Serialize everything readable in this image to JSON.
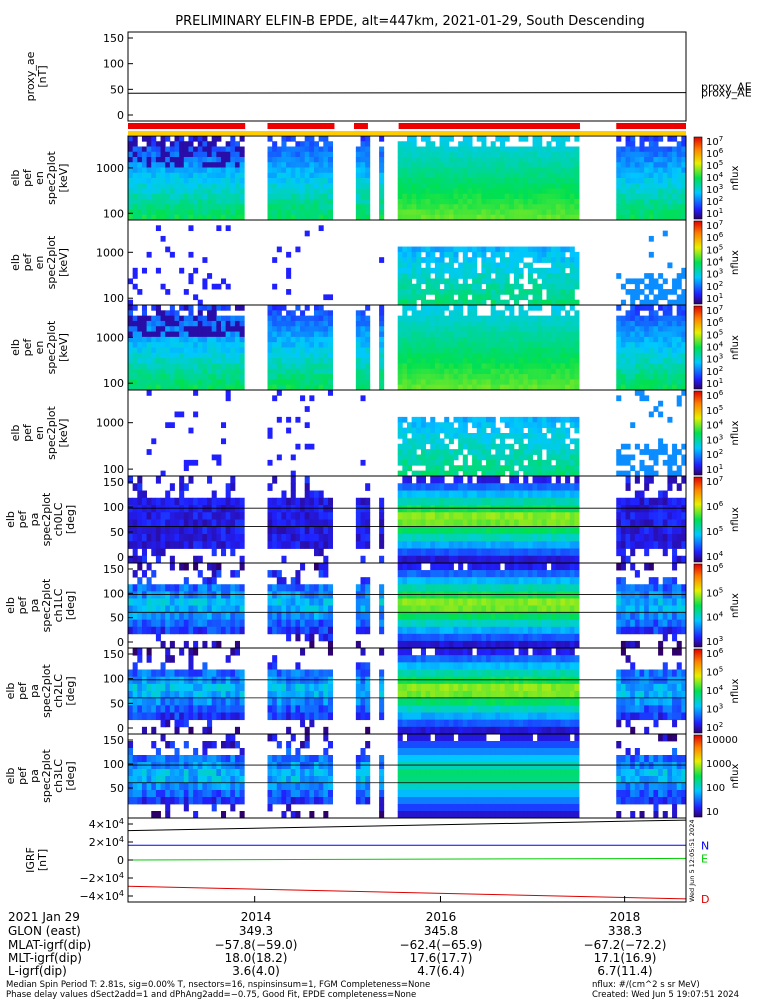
{
  "chart_data": {
    "type": "heatmap",
    "title": "PRELIMINARY ELFIN-B EPDE, alt=447km, 2021-01-29, South Descending",
    "time_ticks": [
      "2014",
      "2016",
      "2018"
    ],
    "panels": [
      {
        "id": "proxy_ae",
        "type": "line",
        "ylabel": [
          "proxy_ae",
          "[nT]"
        ],
        "y_ticks": [
          "150",
          "100",
          "50",
          "0"
        ],
        "legend": "proxy_AE",
        "ylim": [
          -5,
          155
        ],
        "series": [
          {
            "name": "proxy_AE",
            "color": "#000000",
            "y": [
              45,
              46
            ]
          }
        ]
      },
      {
        "id": "elb_pef_en_spec2plot_omni",
        "type": "heatmap",
        "ylabel": [
          "elb",
          "pef",
          "en",
          "spec2plot",
          "[keV]"
        ],
        "y_ticks": [
          "1000",
          "100"
        ],
        "cbar_ticks": [
          "10^7",
          "10^6",
          "10^5",
          "10^4",
          "10^3",
          "10^2",
          "10^1"
        ],
        "cbar_label": "nflux"
      },
      {
        "id": "elb_pef_en_spec2plot_anti",
        "type": "heatmap",
        "ylabel": [
          "elb",
          "pef",
          "en",
          "spec2plot",
          "[keV]"
        ],
        "y_ticks": [
          "1000",
          "100"
        ],
        "cbar_ticks": [
          "10^7",
          "10^6",
          "10^5",
          "10^4",
          "10^3",
          "10^2",
          "10^1"
        ],
        "cbar_label": "nflux"
      },
      {
        "id": "elb_pef_en_spec2plot_perp",
        "type": "heatmap",
        "ylabel": [
          "elb",
          "pef",
          "en",
          "spec2plot",
          "[keV]"
        ],
        "y_ticks": [
          "1000",
          "100"
        ],
        "cbar_ticks": [
          "10^7",
          "10^6",
          "10^5",
          "10^4",
          "10^3",
          "10^2",
          "10^1"
        ],
        "cbar_label": "nflux"
      },
      {
        "id": "elb_pef_en_spec2plot_para",
        "type": "heatmap",
        "ylabel": [
          "elb",
          "pef",
          "en",
          "spec2plot",
          "[keV]"
        ],
        "y_ticks": [
          "1000",
          "100"
        ],
        "cbar_ticks": [
          "10^6",
          "10^5",
          "10^4",
          "10^3",
          "10^2",
          "10^1"
        ],
        "cbar_label": "nflux"
      },
      {
        "id": "elb_pef_pa_ch0LC",
        "type": "heatmap",
        "ylabel": [
          "elb",
          "pef",
          "pa",
          "spec2plot",
          "ch0LC",
          "[deg]"
        ],
        "y_ticks": [
          "150",
          "100",
          "50",
          "0"
        ],
        "cbar_ticks": [
          "10^7",
          "10^6",
          "10^5",
          "10^4"
        ],
        "cbar_label": "nflux"
      },
      {
        "id": "elb_pef_pa_ch1LC",
        "type": "heatmap",
        "ylabel": [
          "elb",
          "pef",
          "pa",
          "spec2plot",
          "ch1LC",
          "[deg]"
        ],
        "y_ticks": [
          "150",
          "100",
          "50",
          "0"
        ],
        "cbar_ticks": [
          "10^6",
          "10^5",
          "10^4",
          "10^3"
        ],
        "cbar_label": "nflux"
      },
      {
        "id": "elb_pef_pa_ch2LC",
        "type": "heatmap",
        "ylabel": [
          "elb",
          "pef",
          "pa",
          "spec2plot",
          "ch2LC",
          "[deg]"
        ],
        "y_ticks": [
          "150",
          "100",
          "50",
          "0"
        ],
        "cbar_ticks": [
          "10^6",
          "10^5",
          "10^4",
          "10^3",
          "10^2"
        ],
        "cbar_label": "nflux"
      },
      {
        "id": "elb_pef_pa_ch3LC",
        "type": "heatmap",
        "ylabel": [
          "elb",
          "pef",
          "pa",
          "spec2plot",
          "ch3LC",
          "[deg]"
        ],
        "y_ticks": [
          "150",
          "100",
          "50"
        ],
        "cbar_ticks": [
          "10000",
          "1000",
          "100",
          "10"
        ],
        "cbar_label": "nflux"
      },
      {
        "id": "igrf",
        "type": "line",
        "ylabel": [
          "IGRF",
          "[nT]"
        ],
        "y_ticks": [
          "4×10^4",
          "2×10^4",
          "0",
          "−2×10^4",
          "−4×10^4"
        ],
        "ylim": [
          -40000,
          40000
        ],
        "series": [
          {
            "name": "",
            "color": "#000000",
            "y": [
              28000,
              38000
            ]
          },
          {
            "name": "N",
            "color": "#0000ff",
            "y": [
              14000,
              14000
            ]
          },
          {
            "name": "E",
            "color": "#00cc00",
            "y": [
              0,
              1500
            ]
          },
          {
            "name": "D",
            "color": "#dd0000",
            "y": [
              -25000,
              -37000
            ]
          }
        ]
      }
    ],
    "footer_rows": [
      {
        "label": "2021 Jan 29",
        "values": [
          "2014",
          "2016",
          "2018"
        ]
      },
      {
        "label": "GLON (east)",
        "values": [
          "349.3",
          "345.8",
          "338.3"
        ]
      },
      {
        "label": "MLAT-igrf(dip)",
        "values": [
          "−57.8(−59.0)",
          "−62.4(−65.9)",
          "−67.2(−72.2)"
        ]
      },
      {
        "label": "MLT-igrf(dip)",
        "values": [
          "18.0(18.2)",
          "17.6(17.7)",
          "17.1(16.9)"
        ]
      },
      {
        "label": "L-igrf(dip)",
        "values": [
          "3.6(4.0)",
          "4.7(6.4)",
          "6.7(11.4)"
        ]
      }
    ],
    "footer_notes": [
      "Median Spin Period T: 2.81s, sig=0.00% T, nsectors=16, nspinsinsum=1, FGM Completeness=None",
      "Phase delay values dSect2add=1 and dPhAng2add=−0.75, Good Fit, EPDE completeness=None"
    ],
    "units_note": "nflux: #/(cm^2 s sr MeV)",
    "created": "Created: Wed Jun  5 19:07:51 2024",
    "side_stamp": "Wed Jun  5 12:05:51 2024"
  },
  "colors": {
    "bar_red": "#ee0000",
    "bar_yellow": "#ffcc00",
    "igrf_N": "#0000ff",
    "igrf_E": "#00cc00",
    "igrf_D": "#dd0000"
  }
}
